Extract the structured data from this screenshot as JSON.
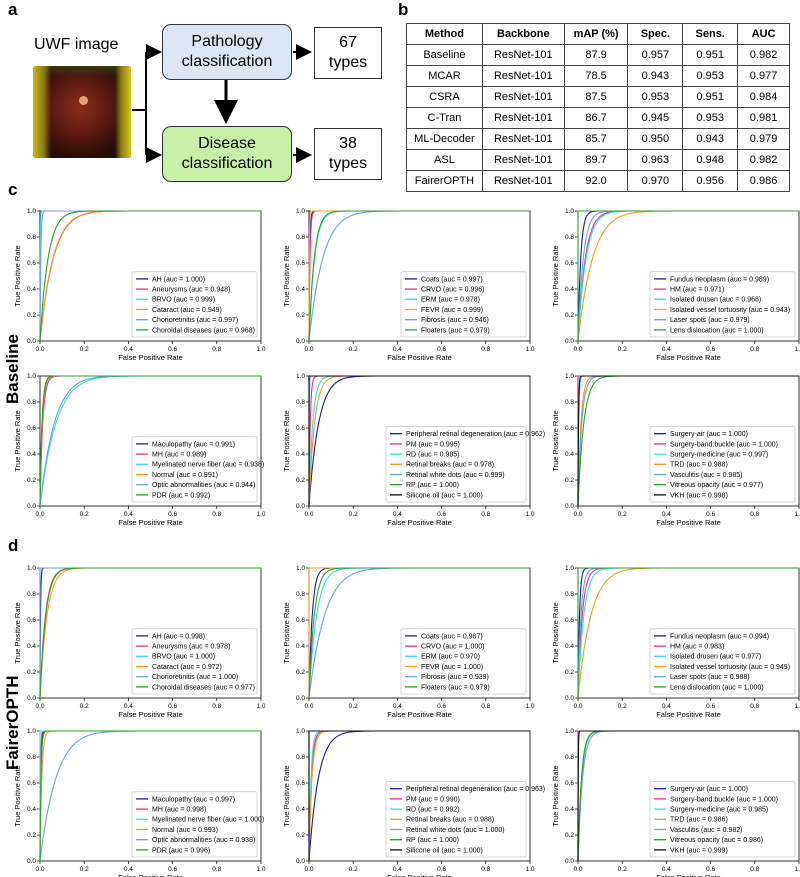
{
  "panel_a": {
    "letter": "a",
    "uwf_label": "UWF image",
    "pathology_label": [
      "Pathology",
      "classification"
    ],
    "disease_label": [
      "Disease",
      "classification"
    ],
    "types_top": [
      "67",
      "types"
    ],
    "types_bottom": [
      "38",
      "types"
    ],
    "colors": {
      "pathology_fill": "#dce6f5",
      "disease_fill": "#c6f0a8"
    }
  },
  "panel_b": {
    "letter": "b",
    "headers": [
      "Method",
      "Backbone",
      "mAP (%)",
      "Spec.",
      "Sens.",
      "AUC"
    ],
    "rows": [
      [
        "Baseline",
        "ResNet-101",
        "87.9",
        "0.957",
        "0.951",
        "0.982"
      ],
      [
        "MCAR",
        "ResNet-101",
        "78.5",
        "0.943",
        "0.953",
        "0.977"
      ],
      [
        "CSRA",
        "ResNet-101",
        "87.5",
        "0.953",
        "0.951",
        "0.984"
      ],
      [
        "C-Tran",
        "ResNet-101",
        "86.7",
        "0.945",
        "0.953",
        "0.981"
      ],
      [
        "ML-Decoder",
        "ResNet-101",
        "85.7",
        "0.950",
        "0.943",
        "0.979"
      ],
      [
        "ASL",
        "ResNet-101",
        "89.7",
        "0.963",
        "0.948",
        "0.982"
      ],
      [
        "FairerOPTH",
        "ResNet-101",
        "92.0",
        "0.970",
        "0.956",
        "0.986"
      ]
    ]
  },
  "panel_c": {
    "letter": "c",
    "side_label": "Baseline"
  },
  "panel_d": {
    "letter": "d",
    "side_label": "FairerOPTH"
  },
  "axis": {
    "xlabel": "False Positive Rate",
    "ylabel": "True Positive Rate",
    "xticks": [
      "0.0",
      "0.2",
      "0.4",
      "0.6",
      "0.8",
      "1.0"
    ],
    "yticks": [
      "0.0",
      "0.2",
      "0.4",
      "0.6",
      "0.8",
      "1.0"
    ]
  },
  "series_colors": {
    "set1": [
      "#1a1aa0",
      "#e6308c",
      "#2ee0e0",
      "#f39c1f",
      "#6f9fe0",
      "#2aa02a"
    ],
    "set2": [
      "#1a1aa0",
      "#e6308c",
      "#2ee0e0",
      "#f39c1f",
      "#6f9fe0",
      "#2aa02a",
      "#111111"
    ]
  },
  "chart_data": [
    {
      "type": "line",
      "panel": "c",
      "row": 0,
      "col": 0,
      "xlabel": "False Positive Rate",
      "ylabel": "True Positive Rate",
      "xlim": [
        0,
        1
      ],
      "ylim": [
        0,
        1
      ],
      "series": [
        {
          "name": "AH (auc = 1.000)",
          "auc": 1.0
        },
        {
          "name": "Aneurysms (auc = 0.948)",
          "auc": 0.948
        },
        {
          "name": "BRVO (auc = 0.999)",
          "auc": 0.999
        },
        {
          "name": "Cataract (auc = 0.949)",
          "auc": 0.949
        },
        {
          "name": "Chorioretinitis (auc = 0.997)",
          "auc": 0.997
        },
        {
          "name": "Choroidal diseases (auc = 0.968)",
          "auc": 0.968
        }
      ]
    },
    {
      "type": "line",
      "panel": "c",
      "row": 0,
      "col": 1,
      "xlabel": "False Positive Rate",
      "ylabel": "True Positive Rate",
      "xlim": [
        0,
        1
      ],
      "ylim": [
        0,
        1
      ],
      "series": [
        {
          "name": "Coats (auc = 0.997)",
          "auc": 0.997
        },
        {
          "name": "CRVO (auc = 0.996)",
          "auc": 0.996
        },
        {
          "name": "ERM (auc = 0.978)",
          "auc": 0.978
        },
        {
          "name": "FEVR (auc = 0.999)",
          "auc": 0.999
        },
        {
          "name": "Fibrosis (auc = 0.946)",
          "auc": 0.946
        },
        {
          "name": "Floaters (auc = 0.979)",
          "auc": 0.979
        }
      ]
    },
    {
      "type": "line",
      "panel": "c",
      "row": 0,
      "col": 2,
      "xlabel": "False Positive Rate",
      "ylabel": "True Positive Rate",
      "xlim": [
        0,
        1
      ],
      "ylim": [
        0,
        1
      ],
      "series": [
        {
          "name": "Fundus neoplasm (auc = 0.989)",
          "auc": 0.989
        },
        {
          "name": "HM (auc = 0.971)",
          "auc": 0.971
        },
        {
          "name": "Isolated drusen (auc = 0.968)",
          "auc": 0.968
        },
        {
          "name": "Isolated vessel tortuosity (auc = 0.943)",
          "auc": 0.943
        },
        {
          "name": "Laser spots (auc = 0.979)",
          "auc": 0.979
        },
        {
          "name": "Lens dislocation (auc = 1.000)",
          "auc": 1.0
        }
      ]
    },
    {
      "type": "line",
      "panel": "c",
      "row": 1,
      "col": 0,
      "xlabel": "False Positive Rate",
      "ylabel": "True Positive Rate",
      "xlim": [
        0,
        1
      ],
      "ylim": [
        0,
        1
      ],
      "series": [
        {
          "name": "Maculopathy (auc = 0.991)",
          "auc": 0.991
        },
        {
          "name": "MH (auc = 0.989)",
          "auc": 0.989
        },
        {
          "name": "Myelinated nerve fiber (auc = 0.938)",
          "auc": 0.938
        },
        {
          "name": "Normal (auc = 0.991)",
          "auc": 0.991
        },
        {
          "name": "Optic abnormalities (auc = 0.944)",
          "auc": 0.944
        },
        {
          "name": "PDR (auc = 0.992)",
          "auc": 0.992
        }
      ]
    },
    {
      "type": "line",
      "panel": "c",
      "row": 1,
      "col": 1,
      "xlabel": "False Positive Rate",
      "ylabel": "True Positive Rate",
      "xlim": [
        0,
        1
      ],
      "ylim": [
        0,
        1
      ],
      "series": [
        {
          "name": "Peripheral retinal degeneration (auc = 0.962)",
          "auc": 0.962
        },
        {
          "name": "PM (auc = 0.995)",
          "auc": 0.995
        },
        {
          "name": "RD (auc = 0.985)",
          "auc": 0.985
        },
        {
          "name": "Retinal breaks (auc = 0.978)",
          "auc": 0.978
        },
        {
          "name": "Retinal white dots (auc = 0.999)",
          "auc": 0.999
        },
        {
          "name": "RP (auc = 1.000)",
          "auc": 1.0
        },
        {
          "name": "Silicone oil (auc = 1.000)",
          "auc": 1.0
        }
      ]
    },
    {
      "type": "line",
      "panel": "c",
      "row": 1,
      "col": 2,
      "xlabel": "False Positive Rate",
      "ylabel": "True Positive Rate",
      "xlim": [
        0,
        1
      ],
      "ylim": [
        0,
        1
      ],
      "series": [
        {
          "name": "Surgery-air (auc = 1.000)",
          "auc": 1.0
        },
        {
          "name": "Surgery-band:buckle (auc = 1.000)",
          "auc": 1.0
        },
        {
          "name": "Surgery-medicine (auc = 0.997)",
          "auc": 0.997
        },
        {
          "name": "TRD (auc = 0.988)",
          "auc": 0.988
        },
        {
          "name": "Vasculitis (auc = 0.985)",
          "auc": 0.985
        },
        {
          "name": "Vitreous opacity (auc = 0.977)",
          "auc": 0.977
        },
        {
          "name": "VKH (auc = 0.998)",
          "auc": 0.998
        }
      ]
    },
    {
      "type": "line",
      "panel": "d",
      "row": 0,
      "col": 0,
      "xlabel": "False Positive Rate",
      "ylabel": "True Positive Rate",
      "xlim": [
        0,
        1
      ],
      "ylim": [
        0,
        1
      ],
      "series": [
        {
          "name": "AH (auc = 0.998)",
          "auc": 0.998
        },
        {
          "name": "Aneurysms (auc = 0.978)",
          "auc": 0.978
        },
        {
          "name": "BRVO (auc = 1.000)",
          "auc": 1.0
        },
        {
          "name": "Cataract (auc = 0.972)",
          "auc": 0.972
        },
        {
          "name": "Chorioretinitis (auc = 1.000)",
          "auc": 1.0
        },
        {
          "name": "Choroidal diseases (auc = 0.977)",
          "auc": 0.977
        }
      ]
    },
    {
      "type": "line",
      "panel": "d",
      "row": 0,
      "col": 1,
      "xlabel": "False Positive Rate",
      "ylabel": "True Positive Rate",
      "xlim": [
        0,
        1
      ],
      "ylim": [
        0,
        1
      ],
      "series": [
        {
          "name": "Coats (auc = 0.987)",
          "auc": 0.987
        },
        {
          "name": "CRVO (auc = 1.000)",
          "auc": 1.0
        },
        {
          "name": "ERM (auc = 0.970)",
          "auc": 0.97
        },
        {
          "name": "FEVR (auc = 1.000)",
          "auc": 1.0
        },
        {
          "name": "Fibrosis (auc = 0.939)",
          "auc": 0.939
        },
        {
          "name": "Floaters (auc = 0.979)",
          "auc": 0.979
        }
      ]
    },
    {
      "type": "line",
      "panel": "d",
      "row": 0,
      "col": 2,
      "xlabel": "False Positive Rate",
      "ylabel": "True Positive Rate",
      "xlim": [
        0,
        1
      ],
      "ylim": [
        0,
        1
      ],
      "series": [
        {
          "name": "Fundus neoplasm (auc = 0.994)",
          "auc": 0.994
        },
        {
          "name": "HM (auc = 0.983)",
          "auc": 0.983
        },
        {
          "name": "Isolated drusen (auc = 0.977)",
          "auc": 0.977
        },
        {
          "name": "Isolated vessel tortuosity (auc = 0.949)",
          "auc": 0.949
        },
        {
          "name": "Laser spots (auc = 0.988)",
          "auc": 0.988
        },
        {
          "name": "Lens dislocation (auc = 1.000)",
          "auc": 1.0
        }
      ]
    },
    {
      "type": "line",
      "panel": "d",
      "row": 1,
      "col": 0,
      "xlabel": "False Positive Rate",
      "ylabel": "True Positive Rate",
      "xlim": [
        0,
        1
      ],
      "ylim": [
        0,
        1
      ],
      "series": [
        {
          "name": "Maculopathy (auc = 0.997)",
          "auc": 0.997
        },
        {
          "name": "MH (auc = 0.998)",
          "auc": 0.998
        },
        {
          "name": "Myelinated nerve fiber (auc = 1.000)",
          "auc": 1.0
        },
        {
          "name": "Normal (auc = 0.993)",
          "auc": 0.993
        },
        {
          "name": "Optic abnormalities (auc = 0.938)",
          "auc": 0.938
        },
        {
          "name": "PDR (auc = 0.996)",
          "auc": 0.996
        }
      ]
    },
    {
      "type": "line",
      "panel": "d",
      "row": 1,
      "col": 1,
      "xlabel": "False Positive Rate",
      "ylabel": "True Positive Rate",
      "xlim": [
        0,
        1
      ],
      "ylim": [
        0,
        1
      ],
      "series": [
        {
          "name": "Peripheral retinal degeneration (auc = 0.963)",
          "auc": 0.963
        },
        {
          "name": "PM (auc = 0.990)",
          "auc": 0.99
        },
        {
          "name": "RD (auc = 0.992)",
          "auc": 0.992
        },
        {
          "name": "Retinal breaks (auc = 0.988)",
          "auc": 0.988
        },
        {
          "name": "Retinal white dots (auc = 1.000)",
          "auc": 1.0
        },
        {
          "name": "RP (auc = 1.000)",
          "auc": 1.0
        },
        {
          "name": "Silicone oil (auc = 1.000)",
          "auc": 1.0
        }
      ]
    },
    {
      "type": "line",
      "panel": "d",
      "row": 1,
      "col": 2,
      "xlabel": "False Positive Rate",
      "ylabel": "True Positive Rate",
      "xlim": [
        0,
        1
      ],
      "ylim": [
        0,
        1
      ],
      "series": [
        {
          "name": "Surgery-air (auc = 1.000)",
          "auc": 1.0
        },
        {
          "name": "Surgery-band:buckle (auc = 1.000)",
          "auc": 1.0
        },
        {
          "name": "Surgery-medicine (auc = 0.985)",
          "auc": 0.985
        },
        {
          "name": "TRD (auc = 0.986)",
          "auc": 0.986
        },
        {
          "name": "Vasculitis (auc = 0.982)",
          "auc": 0.982
        },
        {
          "name": "Vitreous opacity (auc = 0.986)",
          "auc": 0.986
        },
        {
          "name": "VKH (auc = 0.999)",
          "auc": 0.999
        }
      ]
    }
  ]
}
